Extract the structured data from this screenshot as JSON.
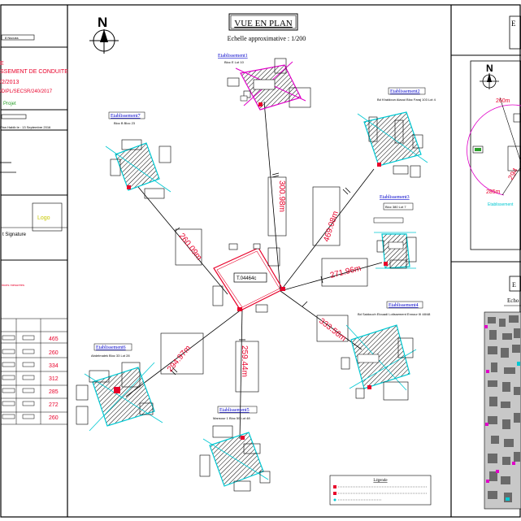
{
  "plan": {
    "title": "VUE EN PLAN",
    "scale": "Echelle approximative :    1/200",
    "north": "N",
    "center_label": "T.04464c",
    "legend_title": "Légende"
  },
  "left_panel": {
    "lines": [
      {
        "text": "8 Nsouss",
        "color": "#000000"
      },
      {
        "text": "E",
        "color": "#e8002a"
      },
      {
        "text": "SSEMENT DE CONDUITE",
        "color": "#e8002a"
      },
      {
        "text": "/2/2013",
        "color": "#e8002a"
      },
      {
        "text": "/DIPL/SECSR/240/2017",
        "color": "#e8002a"
      },
      {
        "text": "Projet",
        "color": "#2aa02a"
      },
      {
        "text": "Plan Habib le : 13 Septembre 2016",
        "color": "#000000"
      },
      {
        "text": "t  Signature",
        "color": "#000000"
      },
      {
        "text": "Logo",
        "color": "#c8c800"
      }
    ],
    "note": "inces mesurées",
    "table_values": [
      "465",
      "260",
      "334",
      "312",
      "285",
      "272",
      "260"
    ]
  },
  "establishments": [
    {
      "id": "e1",
      "title": "Etablissement1",
      "sub": "Bloc E Lot 10"
    },
    {
      "id": "e2",
      "title": "Etablissement2",
      "sub": "Bd Khaldoun Alaoui Bloc Faraj 103 Lot 4"
    },
    {
      "id": "e3",
      "title": "Etablissement3",
      "sub": "Bloc 380  Lot 7"
    },
    {
      "id": "e4",
      "title": "Etablissement4",
      "sub": "Bd Saidouch Elouadi Lotissement Ennour III 48/48"
    },
    {
      "id": "e5",
      "title": "Etablissement5",
      "sub": "Mansour 1 Bloc 50 Lot 48"
    },
    {
      "id": "e6",
      "title": "Etablissement6",
      "sub": "Abdelmalek Bloc 33 Lot 28"
    },
    {
      "id": "e7",
      "title": "Etablissement7",
      "sub": "Bloc B Bloc 23"
    }
  ],
  "distances": [
    "300.98m",
    "469.08m",
    "271.96m",
    "333.56m",
    "259.44m",
    "294.97m",
    "260.09m"
  ],
  "right_panel": {
    "north": "N",
    "title_fragment": "E",
    "red_1": "260m",
    "red_2": "294",
    "red_3": "285m",
    "cyan_label": "Etablissement",
    "lower_fragment": "E",
    "lower_fragment_2": "Echo"
  },
  "colors": {
    "frame": "#000000",
    "cyan": "#00c8d2",
    "magenta": "#e000c8",
    "red": "#e8002a",
    "blue": "#0000cc",
    "green": "#2aa02a"
  }
}
